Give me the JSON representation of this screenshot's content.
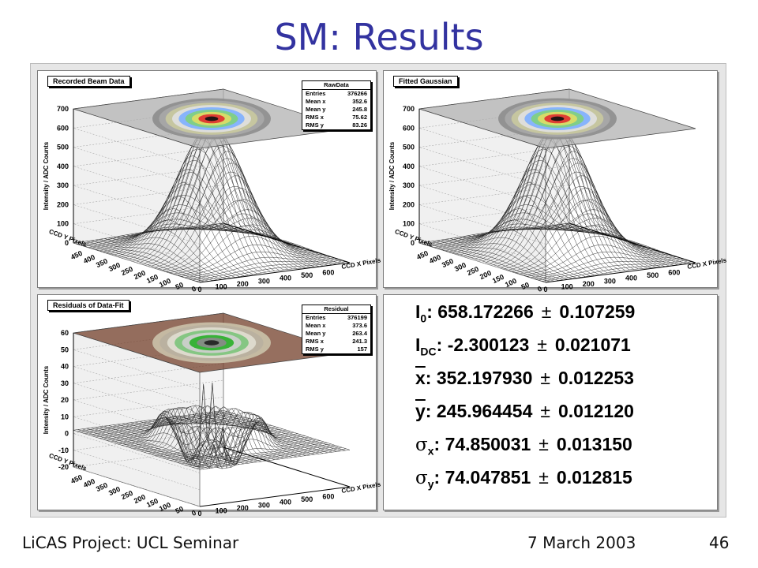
{
  "slide": {
    "title": "SM: Results",
    "footer_left": "LiCAS Project: UCL Seminar",
    "footer_center": "7 March 2003",
    "page_number": "46"
  },
  "chart_data": [
    {
      "type": "surface",
      "title": "Recorded Beam Data",
      "zlabel": "Intensity / ADC Counts",
      "xlabel": "CCD X Pixels",
      "ylabel": "CCD Y Pixels",
      "z_ticks": [
        "0",
        "100",
        "200",
        "300",
        "400",
        "500",
        "600",
        "700"
      ],
      "x_ticks": [
        "0",
        "100",
        "200",
        "300",
        "400",
        "500",
        "600"
      ],
      "y_ticks": [
        "0",
        "50",
        "100",
        "150",
        "200",
        "250",
        "300",
        "350",
        "400",
        "450"
      ],
      "peak": 658,
      "stats": {
        "name": "RawData",
        "rows": [
          {
            "label": "Entries",
            "value": "376266"
          },
          {
            "label": "Mean x",
            "value": "352.6"
          },
          {
            "label": "Mean y",
            "value": "245.8"
          },
          {
            "label": "RMS x",
            "value": "75.62"
          },
          {
            "label": "RMS y",
            "value": "83.26"
          }
        ]
      }
    },
    {
      "type": "surface",
      "title": "Fitted Gaussian",
      "zlabel": "Intensity / ADC Counts",
      "xlabel": "CCD X Pixels",
      "ylabel": "CCD Y Pixels",
      "z_ticks": [
        "0",
        "100",
        "200",
        "300",
        "400",
        "500",
        "600",
        "700"
      ],
      "x_ticks": [
        "0",
        "100",
        "200",
        "300",
        "400",
        "500",
        "600"
      ],
      "y_ticks": [
        "0",
        "50",
        "100",
        "150",
        "200",
        "250",
        "300",
        "350",
        "400",
        "450"
      ],
      "peak": 658
    },
    {
      "type": "surface",
      "title": "Residuals of Data-Fit",
      "zlabel": "Intensity / ADC Counts",
      "xlabel": "CCD X Pixels",
      "ylabel": "CCD Y Pixels",
      "z_ticks": [
        "-20",
        "-10",
        "0",
        "10",
        "20",
        "30",
        "40",
        "50",
        "60"
      ],
      "x_ticks": [
        "0",
        "100",
        "200",
        "300",
        "400",
        "500",
        "600"
      ],
      "y_ticks": [
        "0",
        "50",
        "100",
        "150",
        "200",
        "250",
        "300",
        "350",
        "400",
        "450"
      ],
      "stats": {
        "name": "Residual",
        "rows": [
          {
            "label": "Entries",
            "value": "376199"
          },
          {
            "label": "Mean x",
            "value": "373.6"
          },
          {
            "label": "Mean y",
            "value": "263.4"
          },
          {
            "label": "RMS x",
            "value": "241.3"
          },
          {
            "label": "RMS y",
            "value": "157"
          }
        ]
      }
    }
  ],
  "fit_results": [
    {
      "symbol": "I",
      "sub": "0",
      "value": "658.172266",
      "error": "0.107259",
      "overline": false
    },
    {
      "symbol": "I",
      "sub": "DC",
      "value": "-2.300123",
      "error": "0.021071",
      "overline": false
    },
    {
      "symbol": "x",
      "sub": "",
      "value": "352.197930",
      "error": "0.012253",
      "overline": true
    },
    {
      "symbol": "y",
      "sub": "",
      "value": "245.964454",
      "error": "0.012120",
      "overline": true
    },
    {
      "symbol": "σ",
      "sub": "x",
      "value": "74.850031",
      "error": "0.013150",
      "overline": false
    },
    {
      "symbol": "σ",
      "sub": "y",
      "value": "74.047851",
      "error": "0.012815",
      "overline": false
    }
  ],
  "pm_symbol": "±"
}
